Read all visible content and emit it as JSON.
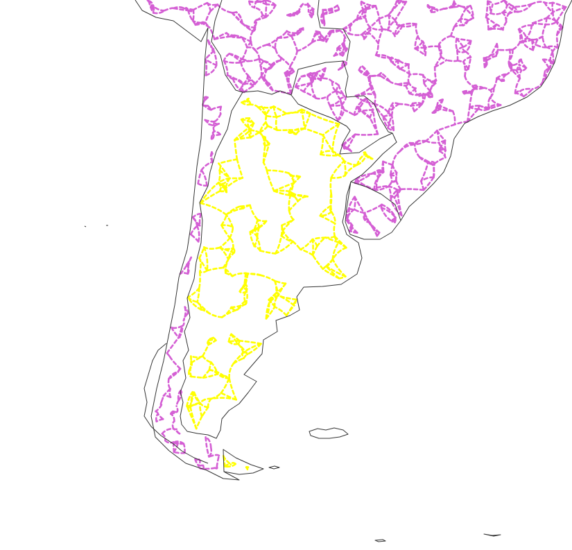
{
  "map": {
    "highlighted_region": "Argentina",
    "colors": {
      "background": "#ffffff",
      "border": "#333333",
      "highlight_roads": "#ffff00",
      "other_roads": "#d45fd4"
    },
    "labels": []
  }
}
